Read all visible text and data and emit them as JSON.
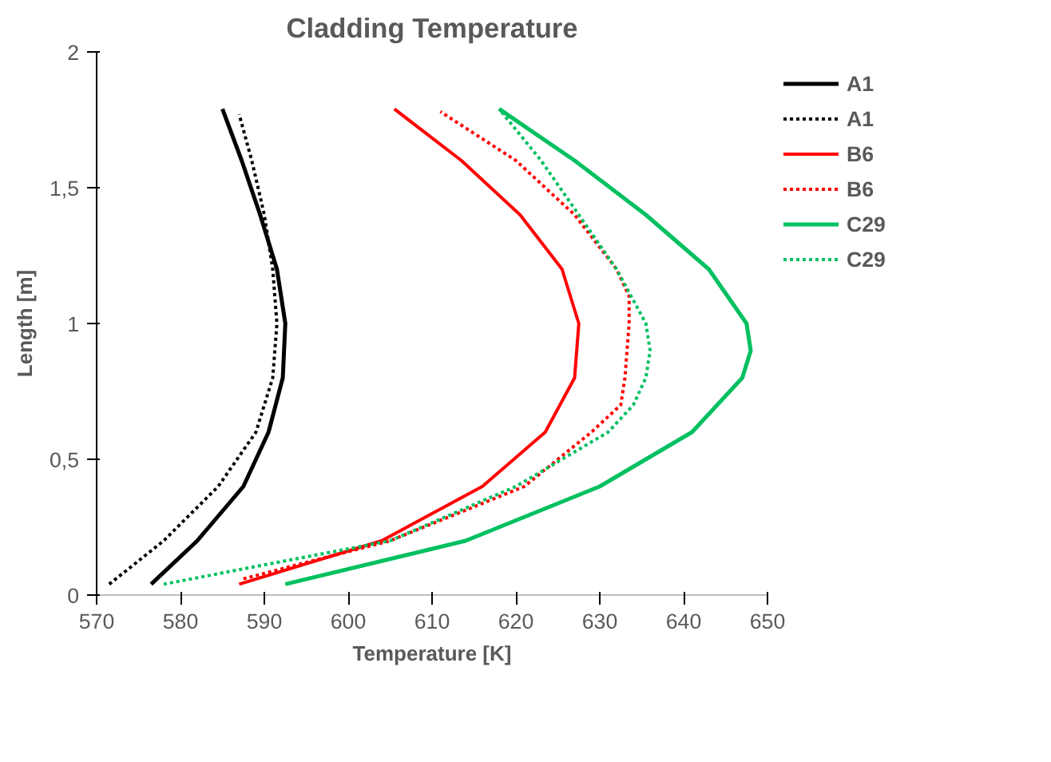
{
  "chart_data": {
    "type": "line",
    "title": "Cladding Temperature",
    "xlabel": "Temperature [K]",
    "ylabel": "Length [m]",
    "xlim": [
      570,
      650
    ],
    "xticks": [
      570,
      580,
      590,
      600,
      610,
      620,
      630,
      640,
      650
    ],
    "ylim": [
      0,
      2
    ],
    "yticks": [
      0,
      {
        "value": 0.5,
        "label": "0,5"
      },
      1,
      {
        "value": 1.5,
        "label": "1,5"
      },
      2
    ],
    "grid": false,
    "legend": "right",
    "marker": "none",
    "series": [
      {
        "name": "A1",
        "color": "#000000",
        "line_style": "solid",
        "x": [
          576.5,
          582,
          587.5,
          590.5,
          592.2,
          592.5,
          591.5,
          589.5,
          587.3,
          585
        ],
        "values": [
          0.04,
          0.2,
          0.4,
          0.6,
          0.8,
          1.0,
          1.2,
          1.4,
          1.6,
          1.79
        ]
      },
      {
        "name": "A1",
        "color": "#000000",
        "line_style": "dotted",
        "x": [
          571.5,
          578,
          584.5,
          589,
          591,
          591.5,
          591,
          590,
          588.5,
          587
        ],
        "values": [
          0.04,
          0.2,
          0.4,
          0.6,
          0.8,
          1.0,
          1.2,
          1.4,
          1.6,
          1.77
        ]
      },
      {
        "name": "B6",
        "color": "#ff0000",
        "line_style": "solid",
        "x": [
          587,
          604,
          616,
          623.5,
          627,
          627.5,
          625.5,
          620.5,
          613.5,
          605.5
        ],
        "values": [
          0.04,
          0.2,
          0.4,
          0.6,
          0.8,
          1.0,
          1.2,
          1.4,
          1.6,
          1.79
        ]
      },
      {
        "name": "B6",
        "color": "#ff0000",
        "line_style": "dotted",
        "x": [
          587.5,
          605,
          621,
          629,
          632.5,
          633,
          633.5,
          633.5,
          632,
          627,
          620,
          611
        ],
        "values": [
          0.06,
          0.2,
          0.4,
          0.6,
          0.7,
          0.8,
          1.0,
          1.1,
          1.2,
          1.4,
          1.6,
          1.78
        ]
      },
      {
        "name": "C29",
        "color": "#00c060",
        "line_style": "solid",
        "x": [
          592.5,
          614,
          630,
          641,
          647,
          648,
          647.5,
          643,
          635.5,
          627,
          618
        ],
        "values": [
          0.04,
          0.2,
          0.4,
          0.6,
          0.8,
          0.9,
          1.0,
          1.2,
          1.4,
          1.6,
          1.79
        ]
      },
      {
        "name": "C29",
        "color": "#00c060",
        "line_style": "dotted",
        "x": [
          578,
          605,
          620,
          631,
          634,
          635.5,
          636,
          635.5,
          632,
          627.5,
          623,
          618
        ],
        "values": [
          0.04,
          0.2,
          0.4,
          0.6,
          0.7,
          0.8,
          0.9,
          1.0,
          1.2,
          1.4,
          1.6,
          1.79
        ]
      }
    ]
  }
}
